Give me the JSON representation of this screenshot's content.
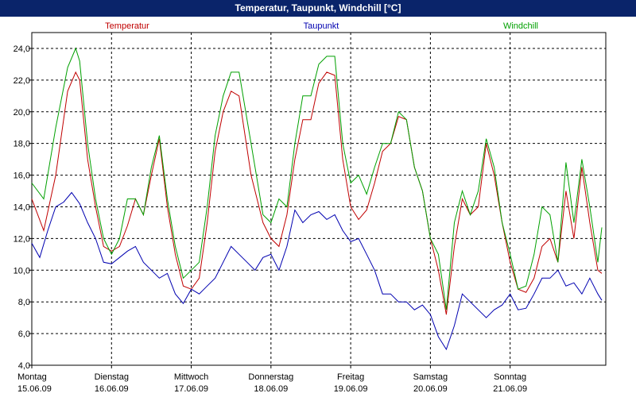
{
  "window": {
    "title": "Temperatur, Taupunkt, Windchill [°C]"
  },
  "colors": {
    "temperatur": "#c00000",
    "taupunkt": "#0000b0",
    "windchill": "#00a000",
    "grid": "#000000",
    "plot_bg": "#ffffff"
  },
  "chart_data": {
    "type": "line",
    "title": "Temperatur, Taupunkt, Windchill [°C]",
    "xlabel": "",
    "ylabel": "",
    "ylim": [
      4,
      25
    ],
    "xlim": [
      0,
      7.2
    ],
    "y_ticks": [
      "4,0",
      "6,0",
      "8,0",
      "10,0",
      "12,0",
      "14,0",
      "16,0",
      "18,0",
      "20,0",
      "22,0",
      "24,0"
    ],
    "y_tick_values": [
      4,
      6,
      8,
      10,
      12,
      14,
      16,
      18,
      20,
      22,
      24
    ],
    "x_ticks": [
      {
        "day": "Montag",
        "date": "15.06.09"
      },
      {
        "day": "Dienstag",
        "date": "16.06.09"
      },
      {
        "day": "Mittwoch",
        "date": "17.06.09"
      },
      {
        "day": "Donnerstag",
        "date": "18.06.09"
      },
      {
        "day": "Freitag",
        "date": "19.06.09"
      },
      {
        "day": "Samstag",
        "date": "20.06.09"
      },
      {
        "day": "Sonntag",
        "date": "21.06.09"
      }
    ],
    "grid": true,
    "legend_position": "top",
    "series": [
      {
        "name": "Temperatur",
        "x": [
          0,
          0.15,
          0.3,
          0.45,
          0.55,
          0.6,
          0.7,
          0.8,
          0.9,
          1.0,
          1.1,
          1.2,
          1.3,
          1.4,
          1.5,
          1.6,
          1.7,
          1.8,
          1.9,
          2.0,
          2.1,
          2.2,
          2.3,
          2.4,
          2.5,
          2.6,
          2.75,
          2.9,
          3.0,
          3.1,
          3.2,
          3.3,
          3.4,
          3.5,
          3.6,
          3.7,
          3.8,
          3.9,
          4.0,
          4.1,
          4.2,
          4.3,
          4.4,
          4.5,
          4.6,
          4.7,
          4.8,
          4.9,
          5.0,
          5.1,
          5.2,
          5.3,
          5.4,
          5.5,
          5.6,
          5.7,
          5.8,
          5.9,
          6.0,
          6.1,
          6.2,
          6.3,
          6.4,
          6.5,
          6.6,
          6.7,
          6.8,
          6.9,
          7.0,
          7.1,
          7.15
        ],
        "y": [
          14.5,
          12.5,
          16.0,
          21.3,
          22.5,
          22.0,
          17.0,
          14.0,
          11.5,
          11.2,
          11.5,
          12.8,
          14.5,
          13.5,
          16.0,
          18.3,
          14.0,
          11.0,
          9.0,
          8.8,
          9.5,
          13.0,
          17.5,
          20.0,
          21.3,
          21.0,
          16.0,
          13.0,
          12.0,
          11.5,
          13.5,
          17.0,
          19.5,
          19.5,
          21.8,
          22.5,
          22.3,
          17.0,
          14.0,
          13.2,
          13.8,
          15.5,
          17.5,
          18.0,
          19.7,
          19.5,
          16.5,
          15.0,
          12.0,
          10.0,
          7.2,
          11.5,
          14.5,
          13.5,
          14.0,
          18.0,
          16.0,
          13.0,
          10.5,
          8.8,
          8.6,
          9.5,
          11.5,
          12.0,
          10.5,
          15.0,
          12.0,
          16.5,
          13.0,
          10.0,
          9.8
        ]
      },
      {
        "name": "Taupunkt",
        "x": [
          0,
          0.1,
          0.2,
          0.3,
          0.4,
          0.5,
          0.6,
          0.7,
          0.8,
          0.9,
          1.0,
          1.1,
          1.2,
          1.3,
          1.4,
          1.5,
          1.6,
          1.7,
          1.8,
          1.9,
          2.0,
          2.1,
          2.2,
          2.3,
          2.4,
          2.5,
          2.6,
          2.7,
          2.8,
          2.9,
          3.0,
          3.1,
          3.2,
          3.3,
          3.4,
          3.5,
          3.6,
          3.7,
          3.8,
          3.9,
          4.0,
          4.1,
          4.2,
          4.3,
          4.4,
          4.5,
          4.6,
          4.7,
          4.8,
          4.9,
          5.0,
          5.1,
          5.2,
          5.3,
          5.4,
          5.5,
          5.6,
          5.7,
          5.8,
          5.9,
          6.0,
          6.1,
          6.2,
          6.3,
          6.4,
          6.5,
          6.6,
          6.7,
          6.8,
          6.9,
          7.0,
          7.1,
          7.15
        ],
        "y": [
          11.7,
          10.8,
          12.5,
          14.0,
          14.3,
          14.9,
          14.2,
          13.0,
          12.0,
          10.5,
          10.4,
          10.8,
          11.2,
          11.5,
          10.5,
          10.0,
          9.5,
          9.8,
          8.5,
          7.9,
          8.8,
          8.5,
          9.0,
          9.5,
          10.5,
          11.5,
          11.0,
          10.5,
          10.0,
          10.8,
          11.0,
          10.0,
          11.5,
          13.8,
          13.0,
          13.5,
          13.7,
          13.2,
          13.5,
          12.5,
          11.8,
          12.0,
          11.0,
          10.0,
          8.5,
          8.5,
          8.0,
          8.0,
          7.5,
          7.8,
          7.2,
          5.8,
          5.0,
          6.5,
          8.5,
          8.0,
          7.5,
          7.0,
          7.5,
          7.8,
          8.5,
          7.5,
          7.6,
          8.5,
          9.5,
          9.5,
          10.0,
          9.0,
          9.2,
          8.5,
          9.5,
          8.5,
          8.1
        ]
      },
      {
        "name": "Windchill",
        "x": [
          0,
          0.15,
          0.3,
          0.45,
          0.55,
          0.6,
          0.7,
          0.8,
          0.9,
          1.0,
          1.1,
          1.2,
          1.3,
          1.4,
          1.5,
          1.6,
          1.7,
          1.8,
          1.9,
          2.0,
          2.1,
          2.2,
          2.3,
          2.4,
          2.5,
          2.6,
          2.75,
          2.9,
          3.0,
          3.1,
          3.2,
          3.3,
          3.4,
          3.5,
          3.6,
          3.7,
          3.8,
          3.9,
          4.0,
          4.1,
          4.2,
          4.3,
          4.4,
          4.5,
          4.6,
          4.7,
          4.8,
          4.9,
          5.0,
          5.1,
          5.2,
          5.3,
          5.4,
          5.5,
          5.6,
          5.7,
          5.8,
          5.9,
          6.0,
          6.1,
          6.2,
          6.3,
          6.4,
          6.5,
          6.6,
          6.7,
          6.8,
          6.9,
          7.0,
          7.1,
          7.15
        ],
        "y": [
          15.5,
          14.5,
          19.0,
          22.8,
          24.0,
          23.2,
          18.0,
          14.5,
          12.0,
          11.0,
          12.0,
          14.5,
          14.5,
          13.5,
          16.5,
          18.5,
          14.5,
          11.5,
          9.5,
          10.0,
          10.5,
          14.0,
          18.5,
          21.0,
          22.5,
          22.5,
          18.0,
          13.5,
          13.0,
          14.5,
          14.0,
          18.0,
          21.0,
          21.0,
          23.0,
          23.5,
          23.5,
          18.0,
          15.5,
          16.0,
          14.8,
          16.5,
          18.0,
          18.0,
          20.0,
          19.5,
          16.5,
          15.0,
          12.0,
          11.0,
          7.5,
          13.0,
          15.0,
          13.5,
          15.0,
          18.3,
          16.5,
          13.0,
          11.0,
          8.8,
          9.0,
          11.0,
          14.0,
          13.5,
          10.5,
          16.8,
          13.0,
          17.0,
          14.0,
          10.5,
          12.7
        ]
      }
    ]
  }
}
